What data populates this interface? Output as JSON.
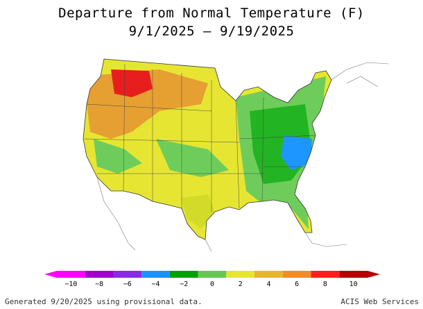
{
  "title": "Departure from Normal Temperature (F)",
  "subtitle": "9/1/2025 – 9/19/2025",
  "legend": {
    "tick_labels": [
      "−10",
      "−8",
      "−6",
      "−4",
      "−2",
      "0",
      "2",
      "4",
      "6",
      "8",
      "10"
    ],
    "colors": [
      "#ff00ff",
      "#a000c8",
      "#8a2be2",
      "#1e90ff",
      "#00a000",
      "#66c850",
      "#e6e632",
      "#e6b432",
      "#f08c28",
      "#ff1e1e",
      "#b40000"
    ],
    "units": "F"
  },
  "map_region_colors": {
    "very_warm": "#e81e1e",
    "warm": "#e6a032",
    "slightly_warm": "#d2dc28",
    "near_normal_warm": "#e6e632",
    "near_normal_cool": "#6ecd5a",
    "cool": "#22b422",
    "cooler": "#1e96ff"
  },
  "footer": {
    "left": "Generated 9/20/2025 using provisional data.",
    "right": "ACIS Web Services"
  }
}
